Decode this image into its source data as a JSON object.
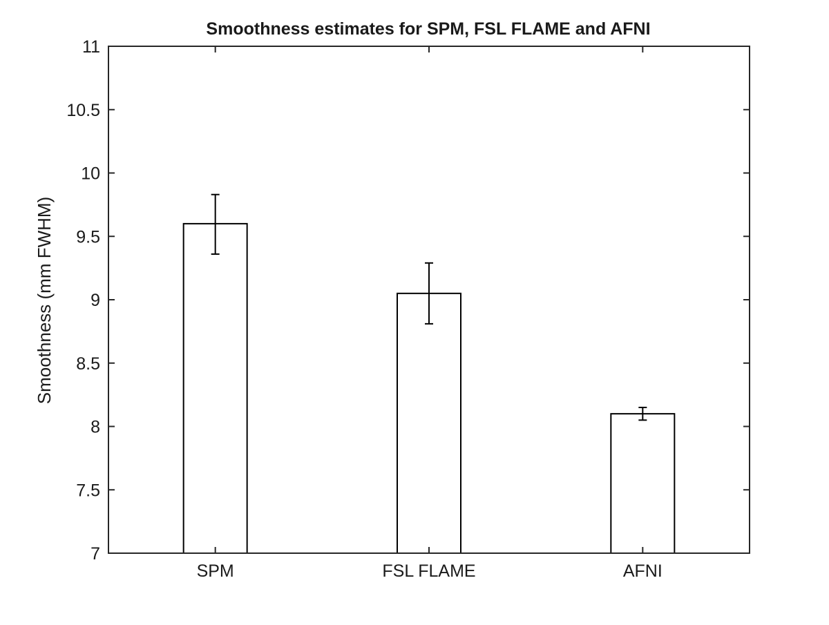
{
  "chart_data": {
    "type": "bar",
    "title": "Smoothness estimates for SPM, FSL FLAME and AFNI",
    "xlabel": "",
    "ylabel": "Smoothness (mm FWHM)",
    "categories": [
      "SPM",
      "FSL FLAME",
      "AFNI"
    ],
    "values": [
      9.6,
      9.05,
      8.1
    ],
    "error_low": [
      9.36,
      8.81,
      8.05
    ],
    "error_high": [
      9.83,
      9.29,
      8.15
    ],
    "ylim": [
      7,
      11
    ],
    "yticks": [
      7,
      7.5,
      8,
      8.5,
      9,
      9.5,
      10,
      10.5,
      11
    ],
    "ytick_labels": [
      "7",
      "7.5",
      "8",
      "8.5",
      "9",
      "9.5",
      "10",
      "10.5",
      "11"
    ],
    "grid": false,
    "legend": "none",
    "colors": {
      "bar_fill": "#ffffff",
      "bar_edge": "#000000",
      "axis": "#262626"
    }
  }
}
